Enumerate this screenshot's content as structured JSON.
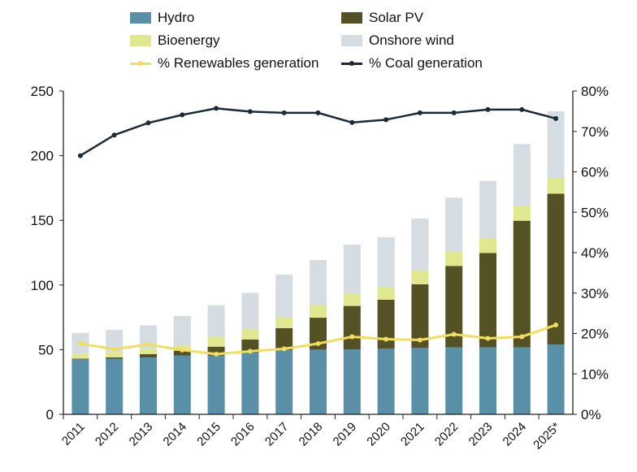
{
  "chart_data": {
    "type": "bar",
    "stacked": true,
    "categories": [
      "2011",
      "2012",
      "2013",
      "2014",
      "2015",
      "2016",
      "2017",
      "2018",
      "2019",
      "2020",
      "2021",
      "2022",
      "2023",
      "2024",
      "2025*"
    ],
    "series": [
      {
        "name": "Hydro",
        "color": "#5a8fa8",
        "values": [
          42.5,
          43,
          44,
          45.4,
          45.4,
          47.7,
          49.8,
          50,
          50.2,
          50.7,
          51.3,
          51.7,
          51.7,
          51.7,
          54
        ]
      },
      {
        "name": "Solar PV",
        "color": "#545224",
        "values": [
          0.5,
          1,
          2.5,
          3.8,
          6.9,
          10.1,
          16.8,
          24.7,
          33.6,
          37.9,
          49.2,
          63,
          73.1,
          98,
          116.6
        ]
      },
      {
        "name": "Bioenergy",
        "color": "#dfe88f",
        "values": [
          3.7,
          4,
          4.2,
          4.2,
          7.7,
          7.9,
          8.4,
          9.7,
          10,
          9.8,
          10.9,
          10.9,
          11.2,
          11.5,
          12
        ]
      },
      {
        "name": "Onshore wind",
        "color": "#d5dde3",
        "values": [
          16.3,
          17.3,
          18.2,
          22.6,
          24.4,
          28.3,
          33,
          34.9,
          37.5,
          38.6,
          40,
          41.9,
          44.5,
          47.8,
          51.7
        ]
      }
    ],
    "line_series": [
      {
        "name": "% Renewables generation",
        "color": "#f3dd5c",
        "axis": "right",
        "values": [
          17.5,
          16.1,
          17.3,
          15.9,
          14.9,
          15.6,
          16.2,
          17.5,
          19.2,
          18.6,
          18.4,
          19.8,
          18.8,
          19.2,
          22.1
        ]
      },
      {
        "name": "% Coal generation",
        "color": "#1b2a3a",
        "axis": "right",
        "values": [
          64.0,
          69.1,
          72.1,
          74.1,
          75.7,
          74.9,
          74.6,
          74.6,
          72.2,
          72.9,
          74.6,
          74.6,
          75.4,
          75.4,
          73.2
        ]
      }
    ],
    "ylim": [
      0,
      250
    ],
    "yticks": [
      "0",
      "50",
      "100",
      "150",
      "200",
      "250"
    ],
    "y2lim": [
      0,
      80
    ],
    "y2ticks": [
      "0%",
      "10%",
      "20%",
      "30%",
      "40%",
      "50%",
      "60%",
      "70%",
      "80%"
    ],
    "legend_position": "top",
    "grid": false
  }
}
